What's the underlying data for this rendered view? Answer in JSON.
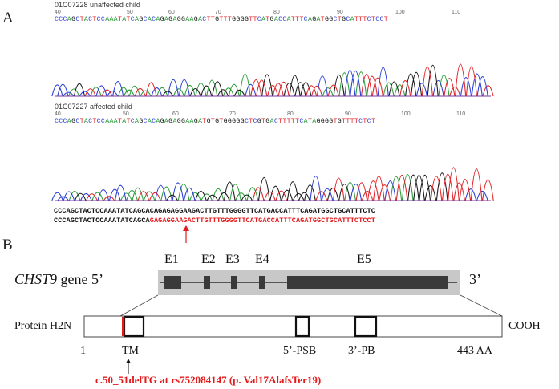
{
  "panel_a": {
    "label": "A",
    "top_trace": {
      "title": "01C07228 unaffected child",
      "ruler": [
        "40",
        "50",
        "60",
        "70",
        "80",
        "90",
        "100",
        "110"
      ],
      "bases": "CCCAGCTACTCCAAATATCAGCACAGAGAGGAAGACTTGTTTGGGGTTCATGACCATTTCAGATGGCTGCATTTCTCCT"
    },
    "bottom_trace": {
      "title": "01C07227 affected child",
      "ruler": [
        "40",
        "50",
        "60",
        "70",
        "80",
        "90",
        "100",
        "110"
      ],
      "bases": "CCCAGCTACTCCAAATATCAGCACAGAGAGGAAGATGTGTGGGGGCTCGTGACTTTTTCATAGGGGTGTTTTCTCT"
    },
    "reference_seq": "CCCAGCTACTCCAAATATCAGCACAGAGAGGAAGACTTGTTTGGGGTTCATGACCATTTCAGATGGCTGCATTTCTC",
    "mutant_seq_black": "CCCAGCTACTCCAAATATCAGCA",
    "mutant_seq_red": "GAGAGGAAGACTTGTTTGGGGTTCATGACCATTTCAGATGGCTGCATTTCTCCT"
  },
  "panel_b": {
    "label": "B",
    "gene_label": "CHST9",
    "gene_suffix": " gene  5’",
    "three_prime": "3’",
    "exons": [
      "E1",
      "E2",
      "E3",
      "E4",
      "E5"
    ],
    "protein_left": "Protein H2N",
    "protein_right": "COOH",
    "pos_start": "1",
    "tm_label": "TM",
    "psb_label": "5’-PSB",
    "pb_label": "3’-PB",
    "pos_end": "443 AA",
    "mutation": "c.50_51delTG at rs752084147 (p. Val17AlafsTer19)"
  },
  "colors": {
    "mutation_red": "#e41a1c",
    "trace_green": "#2e9e3c",
    "trace_red": "#e0262a",
    "trace_blue": "#2b3fd6",
    "trace_black": "#1a1a1a",
    "gene_bg": "#c8c8c8",
    "exon": "#3a3a3a"
  }
}
